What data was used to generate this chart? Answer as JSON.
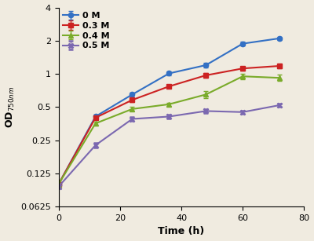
{
  "time": [
    0,
    12,
    24,
    36,
    48,
    60,
    72
  ],
  "series": {
    "0 M": {
      "values": [
        0.1,
        0.41,
        0.65,
        1.01,
        1.2,
        1.88,
        2.1
      ],
      "errors": [
        0.005,
        0.015,
        0.03,
        0.04,
        0.06,
        0.07,
        0.06
      ],
      "color": "#3370C4",
      "marker": "o",
      "linestyle": "-"
    },
    "0.3 M": {
      "values": [
        0.1,
        0.4,
        0.58,
        0.77,
        0.97,
        1.12,
        1.18
      ],
      "errors": [
        0.005,
        0.015,
        0.025,
        0.03,
        0.04,
        0.05,
        0.06
      ],
      "color": "#CC2222",
      "marker": "s",
      "linestyle": "-"
    },
    "0.4 M": {
      "values": [
        0.1,
        0.355,
        0.48,
        0.53,
        0.65,
        0.95,
        0.92
      ],
      "errors": [
        0.005,
        0.015,
        0.02,
        0.02,
        0.05,
        0.05,
        0.06
      ],
      "color": "#7AAB2A",
      "marker": "^",
      "linestyle": "-"
    },
    "0.5 M": {
      "values": [
        0.095,
        0.225,
        0.39,
        0.41,
        0.46,
        0.45,
        0.52
      ],
      "errors": [
        0.004,
        0.01,
        0.015,
        0.015,
        0.02,
        0.015,
        0.02
      ],
      "color": "#7B68B0",
      "marker": "x",
      "linestyle": "-"
    }
  },
  "xlabel": "Time (h)",
  "ylabel": "OD$_{750nm}$",
  "xlim": [
    0,
    80
  ],
  "ylim_log": [
    0.0625,
    4
  ],
  "yticks": [
    0.0625,
    0.125,
    0.25,
    0.5,
    1,
    2,
    4
  ],
  "ytick_labels": [
    "0.0625",
    "0.125",
    "0.25",
    "0.5",
    "1",
    "2",
    "4"
  ],
  "xticks": [
    0,
    20,
    40,
    60,
    80
  ],
  "background_color": "#f0ebe0",
  "label_fontsize": 9,
  "tick_fontsize": 8,
  "legend_fontsize": 8
}
